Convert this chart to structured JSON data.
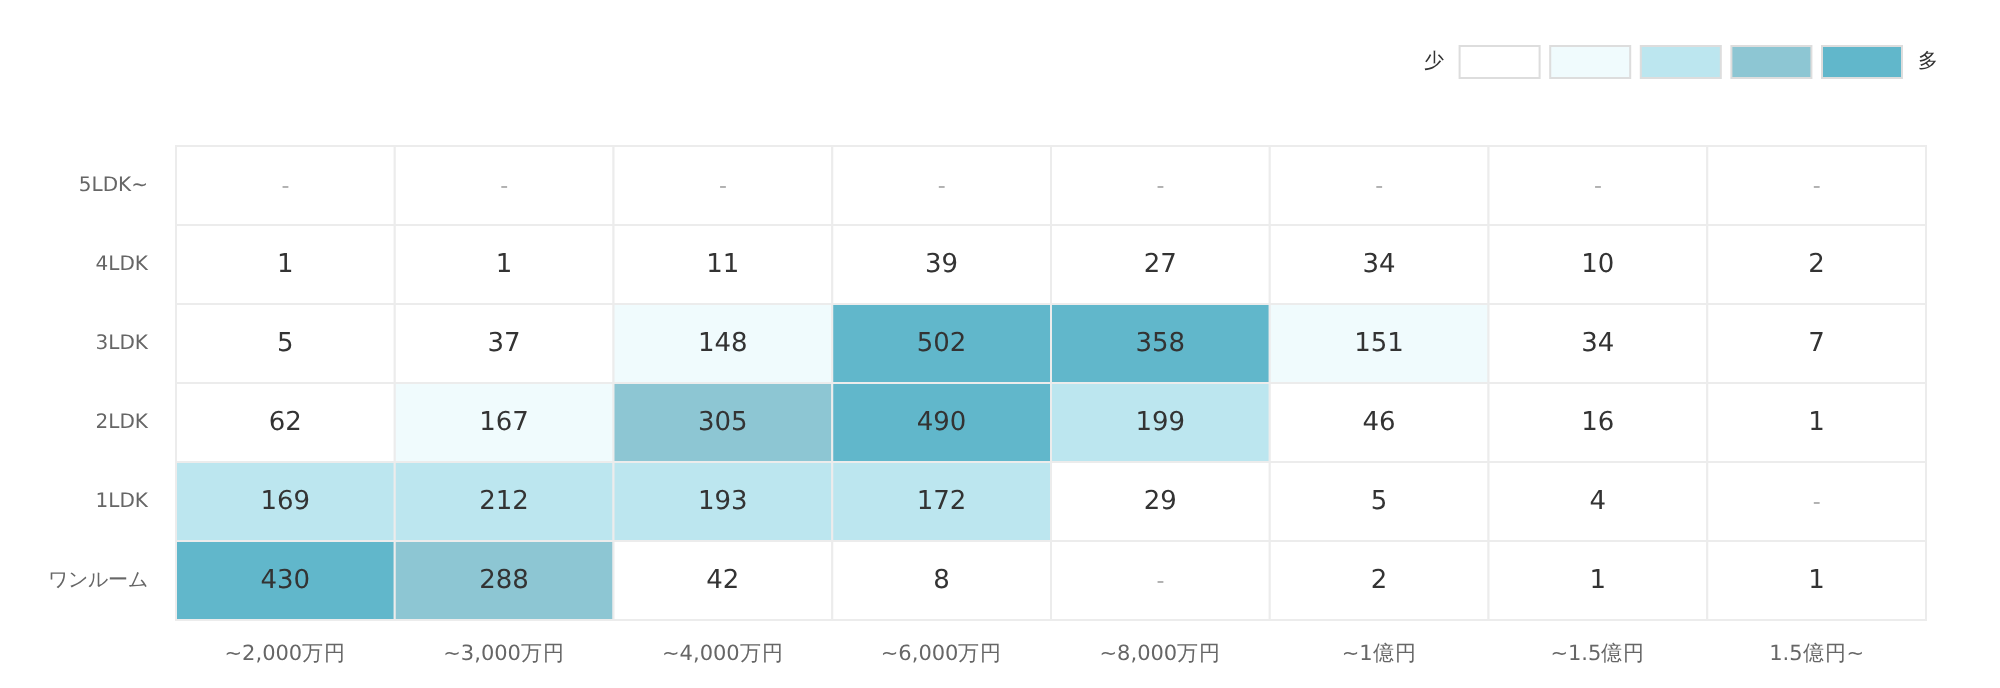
{
  "chart_data": {
    "type": "heatmap",
    "categories": [
      "~2,000万円",
      "~3,000万円",
      "~4,000万円",
      "~6,000万円",
      "~8,000万円",
      "~1億円",
      "~1.5億円",
      "1.5億円~"
    ],
    "y_categories": [
      "5LDK~",
      "4LDK",
      "3LDK",
      "2LDK",
      "1LDK",
      "ワンルーム"
    ],
    "cells": [
      [
        null,
        null,
        null,
        null,
        null,
        null,
        null,
        null
      ],
      [
        1,
        1,
        11,
        39,
        27,
        34,
        10,
        2
      ],
      [
        5,
        37,
        148,
        502,
        358,
        151,
        34,
        7
      ],
      [
        62,
        167,
        305,
        490,
        199,
        46,
        16,
        1
      ],
      [
        169,
        212,
        193,
        172,
        29,
        5,
        4,
        null
      ],
      [
        430,
        288,
        42,
        8,
        null,
        2,
        1,
        1
      ]
    ],
    "cell_labels": [
      [
        "-",
        "-",
        "-",
        "-",
        "-",
        "-",
        "-",
        "-"
      ],
      [
        "1",
        "1",
        "11",
        "39",
        "27",
        "34",
        "10",
        "2"
      ],
      [
        "5",
        "37",
        "148",
        "502",
        "358",
        "151",
        "34",
        "7"
      ],
      [
        "62",
        "167",
        "305",
        "490",
        "199",
        "46",
        "16",
        "1"
      ],
      [
        "169",
        "212",
        "193",
        "172",
        "29",
        "5",
        "4",
        "-"
      ],
      [
        "430",
        "288",
        "42",
        "8",
        "-",
        "2",
        "1",
        "1"
      ]
    ],
    "colors": [
      [
        "#ffffff",
        "#ffffff",
        "#ffffff",
        "#ffffff",
        "#ffffff",
        "#ffffff",
        "#ffffff",
        "#ffffff"
      ],
      [
        "#ffffff",
        "#ffffff",
        "#ffffff",
        "#ffffff",
        "#ffffff",
        "#ffffff",
        "#ffffff",
        "#ffffff"
      ],
      [
        "#ffffff",
        "#ffffff",
        "#f0fbfd",
        "#61b7cb",
        "#61b7cb",
        "#f0fbfd",
        "#ffffff",
        "#ffffff"
      ],
      [
        "#ffffff",
        "#f0fbfd",
        "#8dc6d3",
        "#61b7cb",
        "#bce6ef",
        "#ffffff",
        "#ffffff",
        "#ffffff"
      ],
      [
        "#bce6ef",
        "#bce6ef",
        "#bce6ef",
        "#bce6ef",
        "#ffffff",
        "#ffffff",
        "#ffffff",
        "#ffffff"
      ],
      [
        "#61b7cb",
        "#8dc6d3",
        "#ffffff",
        "#ffffff",
        "#ffffff",
        "#ffffff",
        "#ffffff",
        "#ffffff"
      ]
    ],
    "annotations": [
      "少",
      "多"
    ]
  }
}
